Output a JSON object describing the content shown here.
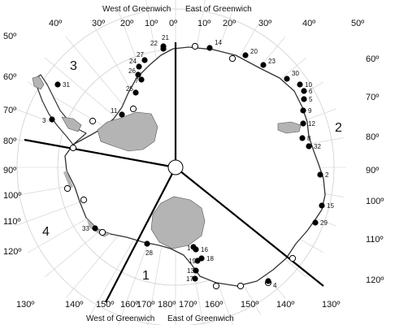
{
  "header": {
    "west_top": "West of Greenwich",
    "east_top": "East of Greenwich",
    "west_bottom": "West of Greenwich",
    "east_bottom": "East of Greenwich"
  },
  "sectors": [
    "1",
    "2",
    "3",
    "4"
  ],
  "ticks": {
    "top_lon": [
      "40º",
      "30º",
      "20º",
      "10º",
      "0º",
      "10º",
      "20º",
      "30º",
      "40º",
      "50º"
    ],
    "bottom_lon": [
      "130º",
      "140º",
      "150º",
      "160º",
      "170º",
      "180º",
      "170º",
      "160º",
      "150º",
      "140º",
      "130º"
    ],
    "left_lat": [
      "50º",
      "60º",
      "70º",
      "80º",
      "90º",
      "100º",
      "110º",
      "120º"
    ],
    "right_lat": [
      "60º",
      "70º",
      "80º",
      "90º",
      "100º",
      "110º",
      "120º"
    ]
  },
  "stations": [
    {
      "label": "1",
      "type": "filled"
    },
    {
      "label": "2",
      "type": "filled"
    },
    {
      "label": "3",
      "type": "filled"
    },
    {
      "label": "4",
      "type": "filled"
    },
    {
      "label": "5",
      "type": "filled"
    },
    {
      "label": "6",
      "type": "filled"
    },
    {
      "label": "7",
      "type": "filled"
    },
    {
      "label": "8",
      "type": "filled"
    },
    {
      "label": "9",
      "type": "filled"
    },
    {
      "label": "10",
      "type": "filled"
    },
    {
      "label": "11",
      "type": "filled"
    },
    {
      "label": "12",
      "type": "filled"
    },
    {
      "label": "13",
      "type": "filled"
    },
    {
      "label": "14",
      "type": "filled"
    },
    {
      "label": "15",
      "type": "filled"
    },
    {
      "label": "16",
      "type": "filled"
    },
    {
      "label": "17",
      "type": "filled"
    },
    {
      "label": "18",
      "type": "filled"
    },
    {
      "label": "19",
      "type": "filled"
    },
    {
      "label": "20",
      "type": "filled"
    },
    {
      "label": "21",
      "type": "filled"
    },
    {
      "label": "22",
      "type": "filled"
    },
    {
      "label": "23",
      "type": "filled"
    },
    {
      "label": "24",
      "type": "filled"
    },
    {
      "label": "25",
      "type": "filled"
    },
    {
      "label": "26",
      "type": "filled"
    },
    {
      "label": "27",
      "type": "filled"
    },
    {
      "label": "28",
      "type": "filled"
    },
    {
      "label": "29",
      "type": "filled"
    },
    {
      "label": "30",
      "type": "filled"
    },
    {
      "label": "31",
      "type": "filled"
    },
    {
      "label": "32",
      "type": "filled"
    },
    {
      "label": "33",
      "type": "filled"
    }
  ],
  "open_station_count": 12,
  "colors": {
    "ice_shelf": "#b4b4b4",
    "coast": "#333333",
    "grid": "#cfcfcf",
    "boundary": "#000000",
    "filled_station": "#000000",
    "open_station": "#ffffff"
  }
}
